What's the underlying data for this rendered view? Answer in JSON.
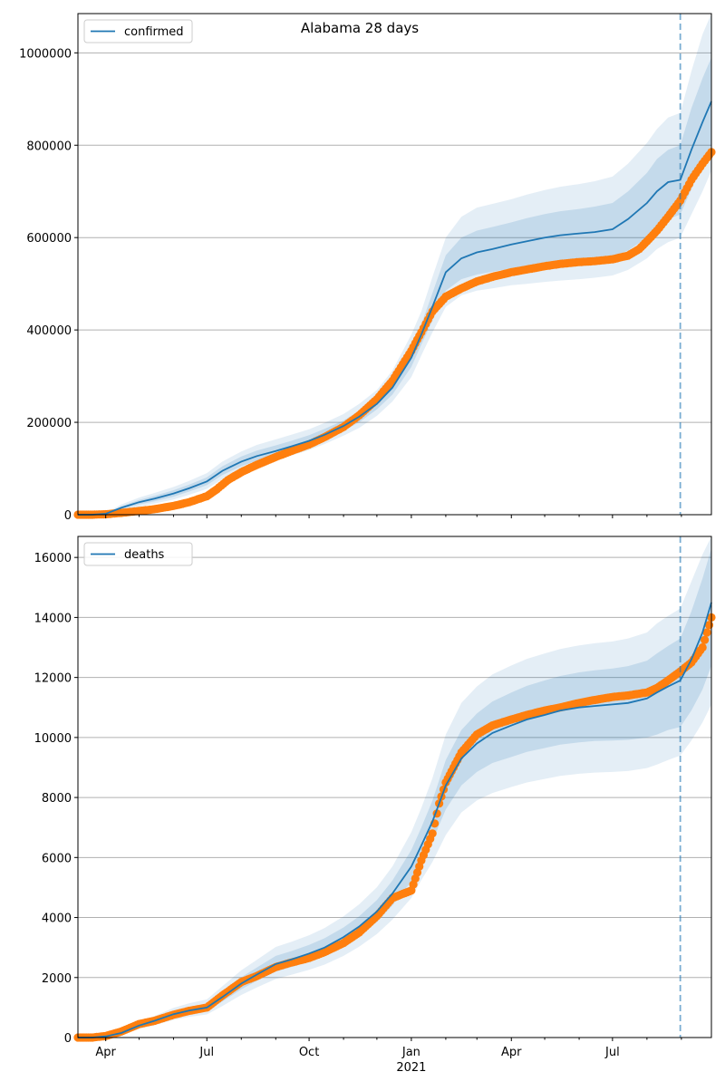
{
  "figure": {
    "title": "Alabama 28 days",
    "colors": {
      "model": "#1f77b4",
      "observed": "#ff7f0e",
      "band": "#1f77b4",
      "grid": "#b0b0b0",
      "forecast_line": "#1f77b4"
    }
  },
  "chart_data": [
    {
      "type": "line",
      "legend": {
        "label": "confirmed",
        "placement": "upper-left"
      },
      "grid": true,
      "xlim": [
        "2020-03-07",
        "2021-09-28"
      ],
      "ylim": [
        0,
        1085000
      ],
      "yticks": [
        0,
        200000,
        400000,
        600000,
        800000,
        1000000
      ],
      "ytick_labels": [
        "0",
        "200000",
        "400000",
        "600000",
        "800000",
        "1000000"
      ],
      "forecast_start": "2021-08-31",
      "model": {
        "name": "confirmed",
        "x": [
          "2020-03-07",
          "2020-03-20",
          "2020-04-01",
          "2020-04-15",
          "2020-05-01",
          "2020-05-15",
          "2020-06-01",
          "2020-06-15",
          "2020-07-01",
          "2020-07-15",
          "2020-08-01",
          "2020-08-15",
          "2020-09-01",
          "2020-09-15",
          "2020-10-01",
          "2020-10-15",
          "2020-11-01",
          "2020-11-15",
          "2020-12-01",
          "2020-12-15",
          "2021-01-01",
          "2021-01-10",
          "2021-01-20",
          "2021-02-01",
          "2021-02-15",
          "2021-03-01",
          "2021-03-15",
          "2021-04-01",
          "2021-04-15",
          "2021-05-01",
          "2021-05-15",
          "2021-06-01",
          "2021-06-15",
          "2021-07-01",
          "2021-07-15",
          "2021-08-01",
          "2021-08-10",
          "2021-08-20",
          "2021-08-31",
          "2021-09-10",
          "2021-09-20",
          "2021-09-28"
        ],
        "y": [
          0,
          0,
          2000,
          15000,
          27000,
          35000,
          46000,
          57000,
          72000,
          95000,
          115000,
          127000,
          138000,
          148000,
          160000,
          173000,
          192000,
          212000,
          240000,
          275000,
          340000,
          390000,
          450000,
          525000,
          555000,
          568000,
          575000,
          585000,
          592000,
          600000,
          605000,
          609000,
          612000,
          618000,
          640000,
          675000,
          700000,
          720000,
          725000,
          790000,
          850000,
          895000
        ],
        "band_inner": {
          "lower": [
            0,
            0,
            1000,
            12000,
            22000,
            29000,
            39000,
            50000,
            64000,
            86000,
            105000,
            117000,
            128000,
            138000,
            150000,
            163000,
            182000,
            200000,
            228000,
            260000,
            320000,
            368000,
            420000,
            485000,
            510000,
            520000,
            526000,
            533000,
            537000,
            541000,
            545000,
            548000,
            552000,
            558000,
            572000,
            600000,
            620000,
            640000,
            650000,
            705000,
            760000,
            800000
          ],
          "upper": [
            0,
            0,
            3000,
            18000,
            32000,
            41000,
            53000,
            65000,
            81000,
            105000,
            126000,
            139000,
            150000,
            160000,
            172000,
            186000,
            204000,
            225000,
            254000,
            292000,
            362000,
            412000,
            480000,
            562000,
            600000,
            615000,
            623000,
            633000,
            642000,
            651000,
            657000,
            662000,
            667000,
            675000,
            700000,
            740000,
            770000,
            790000,
            800000,
            880000,
            945000,
            990000
          ]
        },
        "band_outer": {
          "lower": [
            0,
            0,
            0,
            8000,
            17000,
            24000,
            33000,
            43000,
            56000,
            77000,
            95000,
            107000,
            118000,
            128000,
            140000,
            153000,
            171000,
            188000,
            214000,
            245000,
            298000,
            345000,
            395000,
            450000,
            475000,
            485000,
            490000,
            497000,
            500000,
            504000,
            507000,
            510000,
            513000,
            518000,
            530000,
            555000,
            575000,
            590000,
            600000,
            650000,
            700000,
            745000
          ],
          "upper": [
            0,
            0,
            4000,
            22000,
            37000,
            47000,
            60000,
            73000,
            90000,
            115000,
            137000,
            151000,
            163000,
            173000,
            185000,
            199000,
            218000,
            240000,
            270000,
            312000,
            390000,
            440000,
            515000,
            600000,
            645000,
            665000,
            673000,
            683000,
            693000,
            703000,
            710000,
            716000,
            722000,
            732000,
            760000,
            805000,
            835000,
            860000,
            870000,
            960000,
            1040000,
            1085000
          ]
        }
      },
      "observed": {
        "x": [
          "2020-03-07",
          "2020-03-20",
          "2020-04-01",
          "2020-04-15",
          "2020-05-01",
          "2020-05-15",
          "2020-06-01",
          "2020-06-15",
          "2020-07-01",
          "2020-07-10",
          "2020-07-20",
          "2020-08-01",
          "2020-08-15",
          "2020-09-01",
          "2020-09-15",
          "2020-10-01",
          "2020-10-15",
          "2020-11-01",
          "2020-11-15",
          "2020-12-01",
          "2020-12-15",
          "2021-01-01",
          "2021-01-10",
          "2021-01-20",
          "2021-02-01",
          "2021-02-15",
          "2021-03-01",
          "2021-03-15",
          "2021-04-01",
          "2021-04-15",
          "2021-05-01",
          "2021-05-15",
          "2021-06-01",
          "2021-06-15",
          "2021-07-01",
          "2021-07-15",
          "2021-07-25",
          "2021-08-01",
          "2021-08-10",
          "2021-08-20",
          "2021-08-31",
          "2021-09-10",
          "2021-09-20",
          "2021-09-28"
        ],
        "y": [
          0,
          0,
          1000,
          4000,
          8000,
          12000,
          19000,
          27000,
          40000,
          55000,
          75000,
          92000,
          108000,
          125000,
          138000,
          152000,
          168000,
          190000,
          215000,
          250000,
          290000,
          355000,
          395000,
          440000,
          472000,
          490000,
          505000,
          515000,
          525000,
          531000,
          538000,
          543000,
          547000,
          549000,
          553000,
          561000,
          575000,
          592000,
          615000,
          645000,
          680000,
          725000,
          760000,
          785000
        ]
      }
    },
    {
      "type": "line",
      "legend": {
        "label": "deaths",
        "placement": "upper-left"
      },
      "grid": true,
      "xlim": [
        "2020-03-07",
        "2021-09-28"
      ],
      "ylim": [
        0,
        16700
      ],
      "yticks": [
        0,
        2000,
        4000,
        6000,
        8000,
        10000,
        12000,
        14000,
        16000
      ],
      "ytick_labels": [
        "0",
        "2000",
        "4000",
        "6000",
        "8000",
        "10000",
        "12000",
        "14000",
        "16000"
      ],
      "xticks": [
        "2020-04-01",
        "2020-07-01",
        "2020-10-01",
        "2021-01-01",
        "2021-04-01",
        "2021-07-01"
      ],
      "xtick_labels": [
        "Apr",
        "Jul",
        "Oct",
        "Jan",
        "Apr",
        "Jul"
      ],
      "xtick_year_label": "2021",
      "forecast_start": "2021-08-31",
      "model": {
        "name": "deaths",
        "x": [
          "2020-03-07",
          "2020-03-20",
          "2020-04-01",
          "2020-04-15",
          "2020-05-01",
          "2020-05-15",
          "2020-06-01",
          "2020-06-15",
          "2020-07-01",
          "2020-07-15",
          "2020-08-01",
          "2020-08-15",
          "2020-09-01",
          "2020-09-15",
          "2020-10-01",
          "2020-10-15",
          "2020-11-01",
          "2020-11-15",
          "2020-12-01",
          "2020-12-15",
          "2021-01-01",
          "2021-01-10",
          "2021-01-20",
          "2021-02-01",
          "2021-02-15",
          "2021-03-01",
          "2021-03-15",
          "2021-04-01",
          "2021-04-15",
          "2021-05-01",
          "2021-05-15",
          "2021-06-01",
          "2021-06-15",
          "2021-07-01",
          "2021-07-15",
          "2021-08-01",
          "2021-08-10",
          "2021-08-20",
          "2021-08-31",
          "2021-09-10",
          "2021-09-20",
          "2021-09-28"
        ],
        "y": [
          0,
          0,
          40,
          150,
          400,
          560,
          780,
          900,
          1000,
          1350,
          1800,
          2100,
          2450,
          2600,
          2800,
          3000,
          3350,
          3700,
          4200,
          4800,
          5700,
          6400,
          7200,
          8400,
          9300,
          9800,
          10150,
          10400,
          10600,
          10750,
          10900,
          11000,
          11050,
          11100,
          11150,
          11300,
          11500,
          11700,
          11900,
          12600,
          13500,
          14500
        ],
        "band_inner": {
          "lower": [
            0,
            0,
            20,
            120,
            340,
            480,
            680,
            790,
            880,
            1200,
            1610,
            1890,
            2200,
            2350,
            2530,
            2720,
            3050,
            3380,
            3850,
            4400,
            5200,
            5850,
            6550,
            7600,
            8400,
            8850,
            9150,
            9350,
            9520,
            9650,
            9760,
            9840,
            9880,
            9900,
            9920,
            10000,
            10100,
            10250,
            10350,
            10900,
            11600,
            12400
          ],
          "upper": [
            0,
            0,
            60,
            190,
            470,
            640,
            880,
            1020,
            1130,
            1520,
            2010,
            2330,
            2720,
            2880,
            3090,
            3310,
            3670,
            4040,
            4580,
            5230,
            6250,
            7000,
            7900,
            9250,
            10250,
            10800,
            11200,
            11500,
            11720,
            11900,
            12050,
            12170,
            12240,
            12300,
            12380,
            12560,
            12800,
            13050,
            13300,
            14200,
            15300,
            16300
          ]
        },
        "band_outer": {
          "lower": [
            0,
            0,
            10,
            90,
            290,
            410,
            590,
            690,
            770,
            1050,
            1420,
            1670,
            1950,
            2090,
            2260,
            2430,
            2720,
            3030,
            3450,
            3930,
            4650,
            5250,
            5850,
            6750,
            7500,
            7900,
            8150,
            8350,
            8500,
            8620,
            8720,
            8790,
            8830,
            8850,
            8880,
            8980,
            9100,
            9250,
            9400,
            9900,
            10500,
            11100
          ],
          "upper": [
            0,
            0,
            80,
            230,
            530,
            720,
            990,
            1140,
            1270,
            1710,
            2240,
            2590,
            3020,
            3190,
            3410,
            3650,
            4040,
            4440,
            5010,
            5700,
            6850,
            7650,
            8650,
            10100,
            11150,
            11700,
            12100,
            12400,
            12620,
            12800,
            12950,
            13070,
            13140,
            13200,
            13300,
            13500,
            13800,
            14050,
            14300,
            15200,
            16100,
            16700
          ]
        }
      },
      "observed": {
        "x": [
          "2020-03-07",
          "2020-03-20",
          "2020-04-01",
          "2020-04-15",
          "2020-05-01",
          "2020-05-15",
          "2020-06-01",
          "2020-06-15",
          "2020-07-01",
          "2020-07-15",
          "2020-08-01",
          "2020-08-15",
          "2020-09-01",
          "2020-09-15",
          "2020-10-01",
          "2020-10-15",
          "2020-11-01",
          "2020-11-15",
          "2020-12-01",
          "2020-12-15",
          "2021-01-01",
          "2021-01-10",
          "2021-01-20",
          "2021-01-26",
          "2021-02-01",
          "2021-02-08",
          "2021-02-15",
          "2021-03-01",
          "2021-03-15",
          "2021-04-01",
          "2021-04-15",
          "2021-05-01",
          "2021-05-15",
          "2021-06-01",
          "2021-06-15",
          "2021-07-01",
          "2021-07-15",
          "2021-08-01",
          "2021-08-10",
          "2021-08-20",
          "2021-08-31",
          "2021-09-10",
          "2021-09-20",
          "2021-09-28"
        ],
        "y": [
          0,
          0,
          50,
          200,
          450,
          560,
          760,
          890,
          1000,
          1400,
          1850,
          2050,
          2350,
          2500,
          2650,
          2850,
          3150,
          3500,
          4050,
          4650,
          4900,
          5900,
          6800,
          7800,
          8500,
          9000,
          9500,
          10100,
          10400,
          10600,
          10750,
          10900,
          11000,
          11150,
          11250,
          11350,
          11400,
          11500,
          11650,
          11900,
          12200,
          12500,
          13000,
          14000
        ]
      }
    }
  ]
}
